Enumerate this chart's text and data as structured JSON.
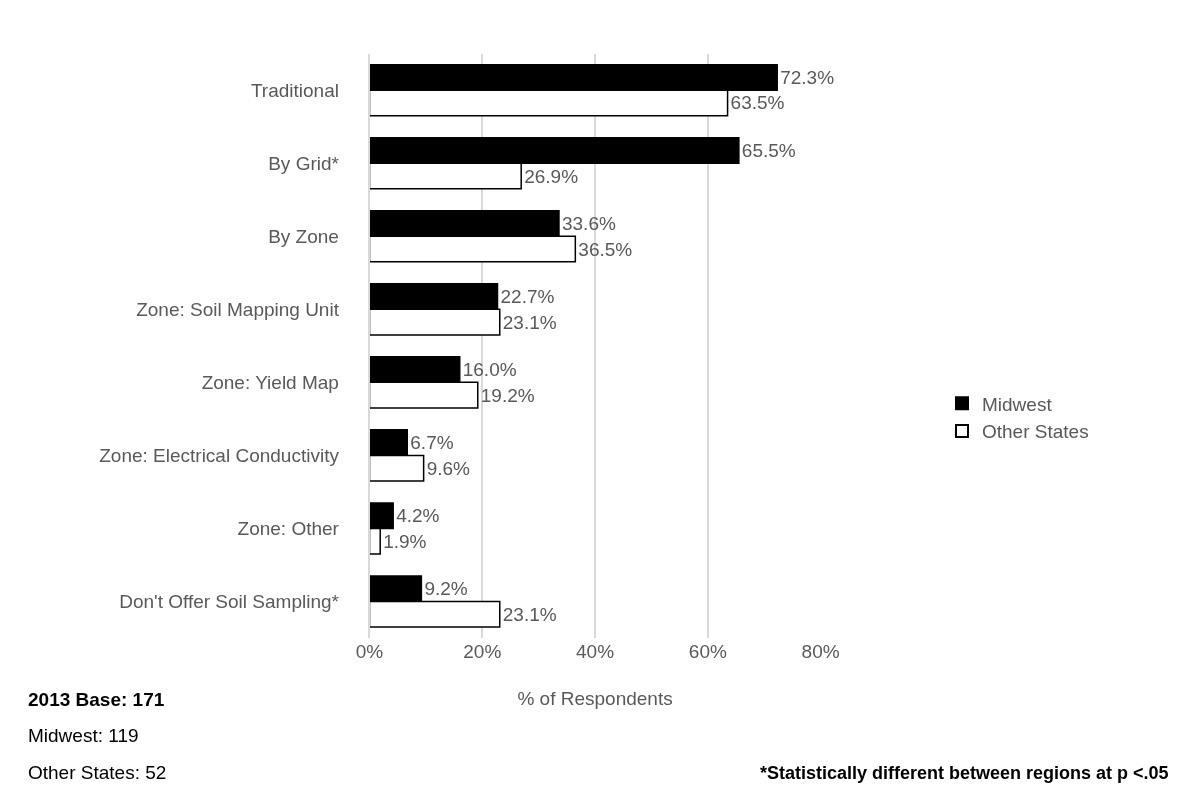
{
  "chart_data": {
    "type": "bar",
    "orientation": "horizontal",
    "xlabel": "% of Respondents",
    "categories": [
      "Traditional",
      "By Grid*",
      "By Zone",
      "Zone: Soil Mapping Unit",
      "Zone: Yield Map",
      "Zone: Electrical Conductivity",
      "Zone: Other",
      "Don't Offer Soil Sampling*"
    ],
    "series": [
      {
        "name": "Midwest",
        "color": "#000000",
        "values": [
          72.3,
          65.5,
          33.6,
          22.7,
          16.0,
          6.7,
          4.2,
          9.2
        ],
        "value_labels": [
          "72.3%",
          "65.5%",
          "33.6%",
          "22.7%",
          "16.0%",
          "6.7%",
          "4.2%",
          "9.2%"
        ]
      },
      {
        "name": "Other States",
        "color": "#ffffff",
        "values": [
          63.5,
          26.9,
          36.5,
          23.1,
          19.2,
          9.6,
          1.9,
          23.1
        ],
        "value_labels": [
          "63.5%",
          "26.9%",
          "36.5%",
          "23.1%",
          "19.2%",
          "9.6%",
          "1.9%",
          "23.1%"
        ]
      }
    ],
    "xlim": [
      0,
      80
    ],
    "xticks": [
      {
        "value": 0,
        "label": "0%"
      },
      {
        "value": 20,
        "label": "20%"
      },
      {
        "value": 40,
        "label": "40%"
      },
      {
        "value": 60,
        "label": "60%"
      },
      {
        "value": 80,
        "label": "80%"
      }
    ],
    "grid": "x",
    "legend": "right",
    "annotations": [
      "2013 Base: 171",
      "Midwest: 119",
      "Other States: 52",
      "*Statistically different between regions at p <.05"
    ]
  }
}
